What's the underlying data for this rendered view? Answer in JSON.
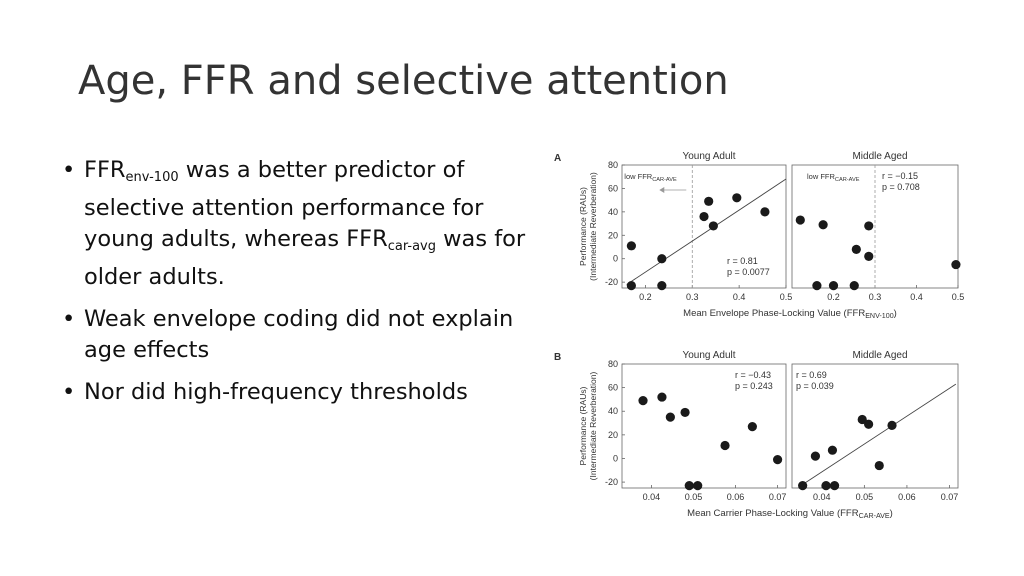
{
  "slide": {
    "title": "Age, FFR and selective attention",
    "bullets": [
      {
        "pre": "FFR",
        "sub1": "env-100",
        "mid": " was a better predictor of selective attention performance for young adults, whereas FFR",
        "sub2": "car-avg",
        "post": " was for older adults."
      },
      {
        "text": "Weak envelope coding did not explain age effects"
      },
      {
        "text": "Nor did high-frequency thresholds"
      }
    ]
  },
  "chart_data": [
    {
      "type": "scatter",
      "panel_label": "A",
      "title": "Young Adult",
      "ylabel": "Performance (RAUs)",
      "ylabel2": "(Intermediate Reverberation)",
      "xlabel": "Mean Envelope Phase-Locking Value (FFR",
      "xlabel_sub": "ENV-100",
      "xlabel_close": ")",
      "xlim": [
        0.15,
        0.5
      ],
      "ylim": [
        -25,
        80
      ],
      "xticks": [
        "0.2",
        "0.3",
        "0.4",
        "0.5"
      ],
      "xtick_values": [
        0.2,
        0.3,
        0.4,
        0.5
      ],
      "yticks": [
        "-20",
        "0",
        "20",
        "40",
        "60",
        "80"
      ],
      "ytick_values": [
        -20,
        0,
        20,
        40,
        60,
        80
      ],
      "threshold_x": 0.3,
      "threshold_label": "low FFR",
      "threshold_label_sub": "CAR-AVE",
      "r_text": "r = 0.81",
      "p_text": "p = 0.0077",
      "fit": [
        [
          0.16,
          -22
        ],
        [
          0.5,
          68
        ]
      ],
      "points": [
        [
          0.17,
          11
        ],
        [
          0.17,
          -23
        ],
        [
          0.235,
          0
        ],
        [
          0.235,
          -23
        ],
        [
          0.325,
          36
        ],
        [
          0.335,
          49
        ],
        [
          0.345,
          28
        ],
        [
          0.395,
          52
        ],
        [
          0.455,
          40
        ]
      ]
    },
    {
      "type": "scatter",
      "title": "Middle Aged",
      "xlim": [
        0.1,
        0.5
      ],
      "ylim": [
        -25,
        80
      ],
      "xticks": [
        "0.2",
        "0.3",
        "0.4",
        "0.5"
      ],
      "xtick_values": [
        0.2,
        0.3,
        0.4,
        0.5
      ],
      "threshold_x": 0.3,
      "threshold_label": "low FFR",
      "threshold_label_sub": "CAR-AVE",
      "r_text": "r = −0.15",
      "p_text": "p = 0.708",
      "points": [
        [
          0.12,
          33
        ],
        [
          0.175,
          29
        ],
        [
          0.16,
          -23
        ],
        [
          0.2,
          -23
        ],
        [
          0.255,
          8
        ],
        [
          0.25,
          -23
        ],
        [
          0.285,
          28
        ],
        [
          0.285,
          2
        ],
        [
          0.495,
          -5
        ]
      ]
    },
    {
      "type": "scatter",
      "panel_label": "B",
      "title": "Young Adult",
      "ylabel": "Performance (RAUs)",
      "ylabel2": "(Intermediate Reverberation)",
      "xlabel": "Mean Carrier Phase-Locking Value (FFR",
      "xlabel_sub": "CAR-AVE",
      "xlabel_close": ")",
      "xlim": [
        0.033,
        0.072
      ],
      "ylim": [
        -25,
        80
      ],
      "xticks": [
        "0.04",
        "0.05",
        "0.06",
        "0.07"
      ],
      "xtick_values": [
        0.04,
        0.05,
        0.06,
        0.07
      ],
      "yticks": [
        "-20",
        "0",
        "20",
        "40",
        "60",
        "80"
      ],
      "ytick_values": [
        -20,
        0,
        20,
        40,
        60,
        80
      ],
      "r_text": "r = −0.43",
      "p_text": "p = 0.243",
      "points": [
        [
          0.038,
          49
        ],
        [
          0.0425,
          52
        ],
        [
          0.0445,
          35
        ],
        [
          0.048,
          39
        ],
        [
          0.049,
          -23
        ],
        [
          0.051,
          -23
        ],
        [
          0.0575,
          11
        ],
        [
          0.064,
          27
        ],
        [
          0.07,
          -1
        ]
      ]
    },
    {
      "type": "scatter",
      "title": "Middle Aged",
      "xlim": [
        0.033,
        0.072
      ],
      "ylim": [
        -25,
        80
      ],
      "xticks": [
        "0.04",
        "0.05",
        "0.06",
        "0.07"
      ],
      "xtick_values": [
        0.04,
        0.05,
        0.06,
        0.07
      ],
      "r_text": "r = 0.69",
      "p_text": "p = 0.039",
      "fit": [
        [
          0.0355,
          -22
        ],
        [
          0.0715,
          63
        ]
      ],
      "points": [
        [
          0.0355,
          -23
        ],
        [
          0.0385,
          2
        ],
        [
          0.041,
          -23
        ],
        [
          0.043,
          -23
        ],
        [
          0.0425,
          7
        ],
        [
          0.0495,
          33
        ],
        [
          0.051,
          29
        ],
        [
          0.0535,
          -6
        ],
        [
          0.0565,
          28
        ]
      ]
    }
  ]
}
